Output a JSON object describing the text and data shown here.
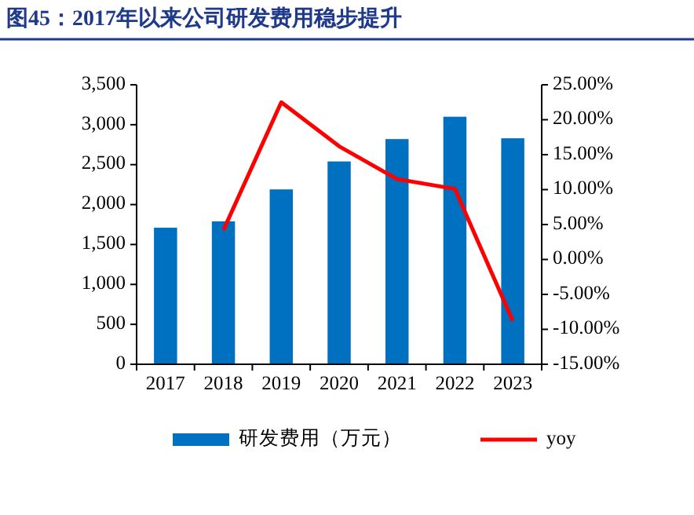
{
  "chart_data": {
    "type": "bar",
    "title": "图45：2017年以来公司研发费用稳步提升",
    "categories": [
      "2017",
      "2018",
      "2019",
      "2020",
      "2021",
      "2022",
      "2023"
    ],
    "series": [
      {
        "name": "研发费用（万元）",
        "color": "#0070c0",
        "values": [
          1710,
          1790,
          2190,
          2540,
          2820,
          3100,
          2830
        ]
      },
      {
        "name": "yoy",
        "type": "line",
        "axis": "y2",
        "color": "#ff0000",
        "values": [
          null,
          4.2,
          22.5,
          16.2,
          11.5,
          10.1,
          -8.8
        ]
      }
    ],
    "ylim": [
      0,
      3500
    ],
    "yticks": [
      0,
      500,
      {
        "value": 1000,
        "label": "1,000"
      },
      {
        "value": 1500,
        "label": "1,500"
      },
      {
        "value": 2000,
        "label": "2,000"
      },
      {
        "value": 2500,
        "label": "2,500"
      },
      {
        "value": 3000,
        "label": "3,000"
      },
      {
        "value": 3500,
        "label": "3,500"
      }
    ],
    "y2lim": [
      -15,
      25
    ],
    "y2ticks": [
      {
        "value": -15,
        "label": "-15.00%"
      },
      {
        "value": -10,
        "label": "-10.00%"
      },
      {
        "value": -5,
        "label": "-5.00%"
      },
      {
        "value": 0,
        "label": "0.00%"
      },
      {
        "value": 5,
        "label": "5.00%"
      },
      {
        "value": 10,
        "label": "10.00%"
      },
      {
        "value": 15,
        "label": "15.00%"
      },
      {
        "value": 20,
        "label": "20.00%"
      },
      {
        "value": 25,
        "label": "25.00%"
      }
    ],
    "legend": "bottom"
  }
}
